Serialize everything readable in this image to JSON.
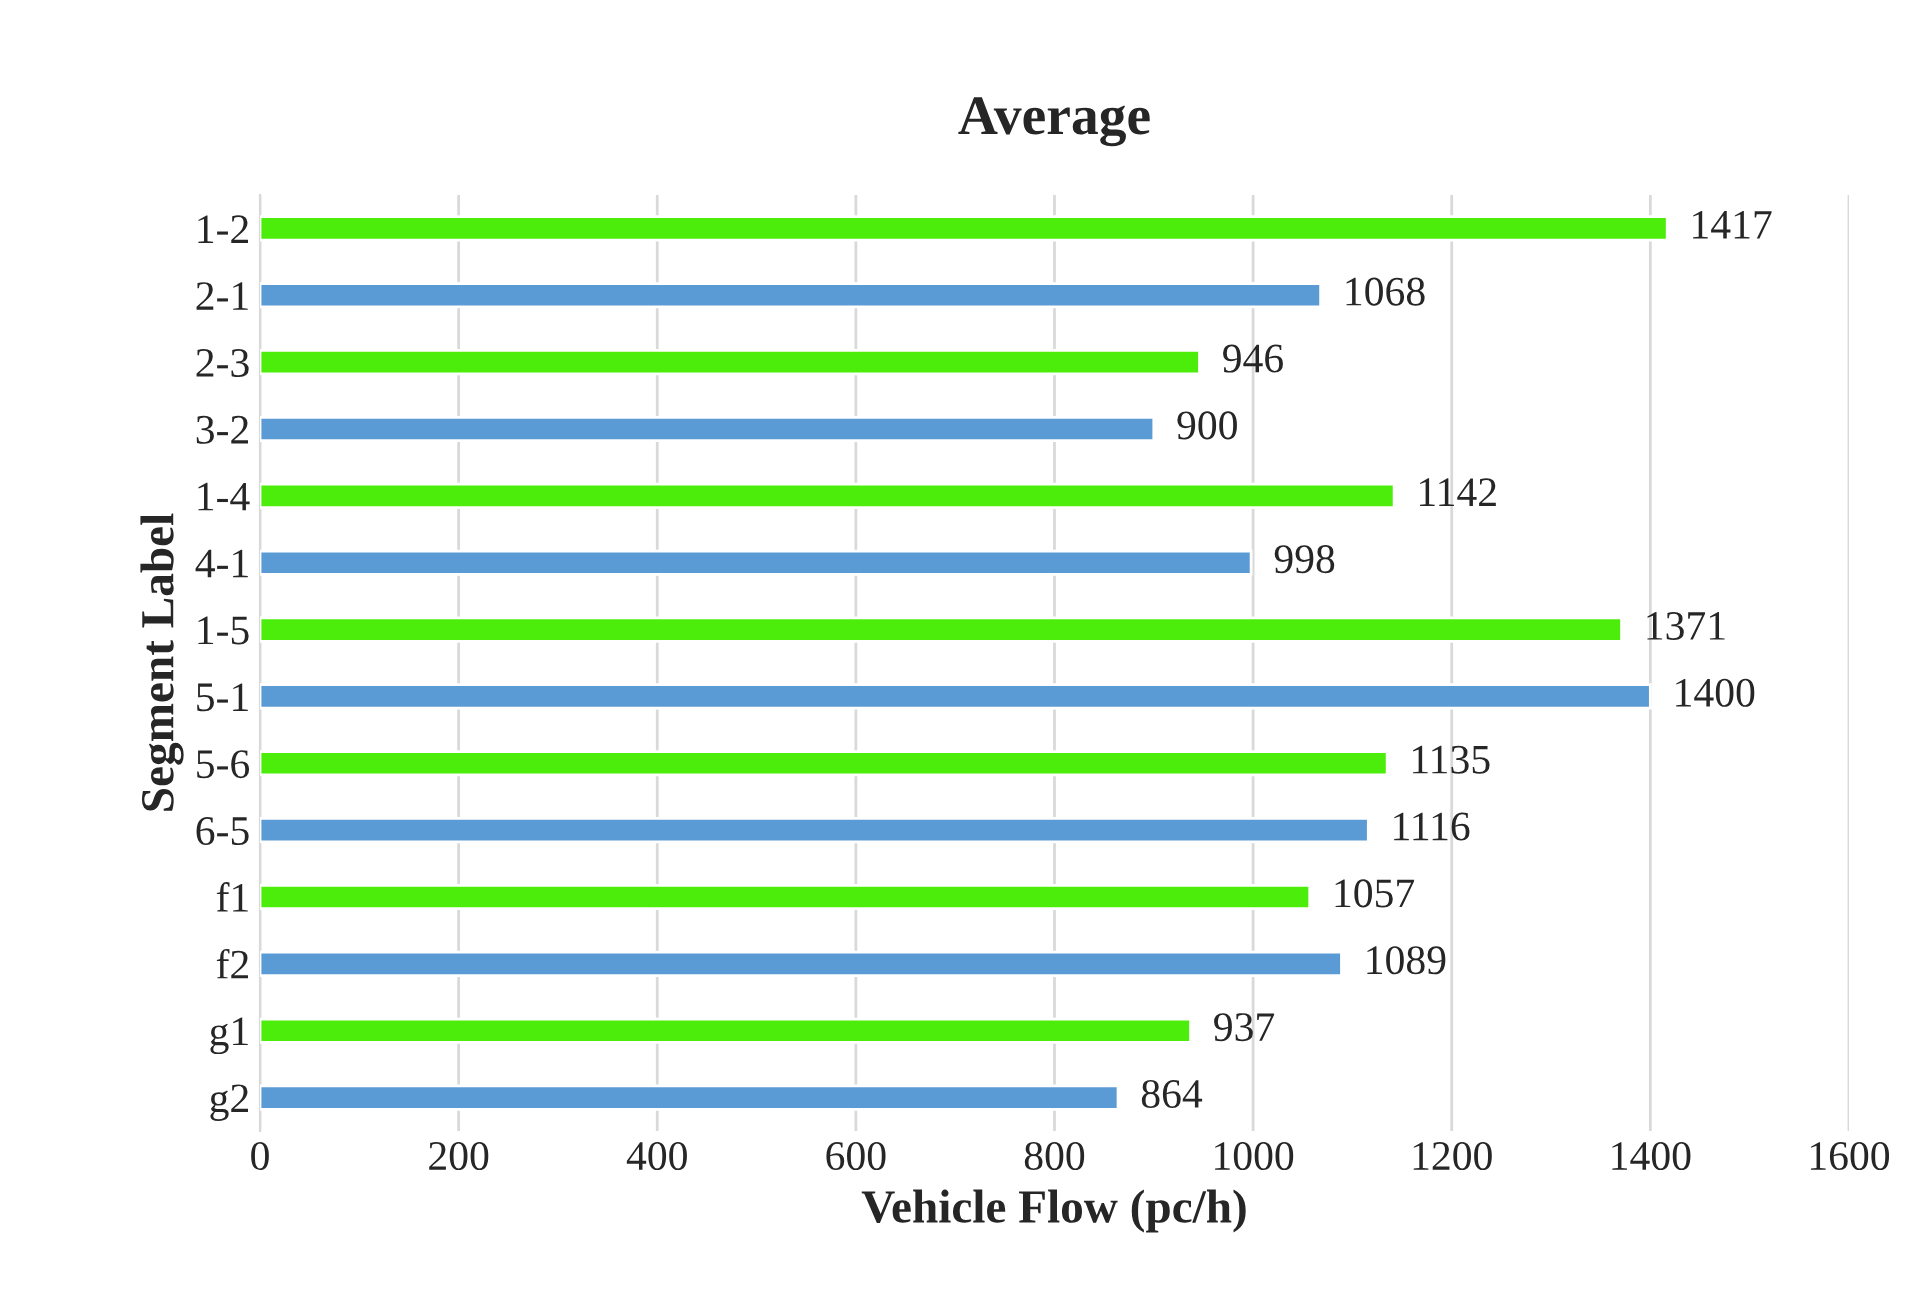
{
  "chart_data": {
    "type": "bar",
    "orientation": "horizontal",
    "title": "Average",
    "xlabel": "Vehicle Flow (pc/h)",
    "ylabel": "Segment Label",
    "categories": [
      "1-2",
      "2-1",
      "2-3",
      "3-2",
      "1-4",
      "4-1",
      "1-5",
      "5-1",
      "5-6",
      "6-5",
      "f1",
      "f2",
      "g1",
      "g2"
    ],
    "values": [
      1417,
      1068,
      946,
      900,
      1142,
      998,
      1371,
      1400,
      1135,
      1116,
      1057,
      1089,
      937,
      864
    ],
    "colors": [
      "#4ded0b",
      "#5b9bd5",
      "#4ded0b",
      "#5b9bd5",
      "#4ded0b",
      "#5b9bd5",
      "#4ded0b",
      "#5b9bd5",
      "#4ded0b",
      "#5b9bd5",
      "#4ded0b",
      "#5b9bd5",
      "#4ded0b",
      "#5b9bd5"
    ],
    "xlim": [
      0,
      1600
    ],
    "xticks": [
      0,
      200,
      400,
      600,
      800,
      1000,
      1200,
      1400,
      1600
    ],
    "grid": "x",
    "data_labels": true,
    "legend": false
  }
}
